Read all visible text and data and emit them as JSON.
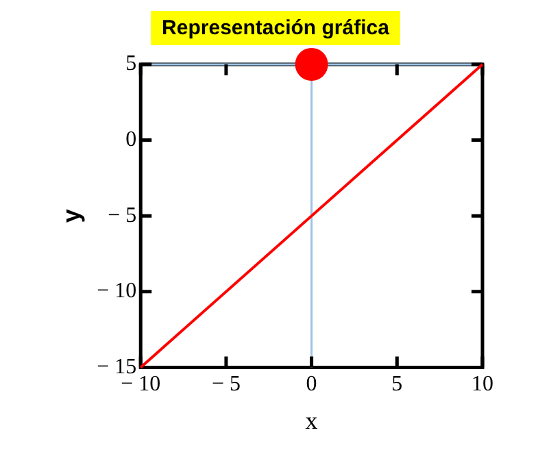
{
  "chart_data": {
    "type": "line",
    "title": "Representación gráfica",
    "xlabel": "x",
    "ylabel": "y",
    "xlim": [
      -10,
      10
    ],
    "ylim": [
      -15,
      5
    ],
    "xticks": [
      {
        "value": -10,
        "label": "− 10"
      },
      {
        "value": -5,
        "label": "− 5"
      },
      0,
      5,
      10
    ],
    "yticks": [
      {
        "value": -15,
        "label": "− 15"
      },
      {
        "value": -10,
        "label": "− 10"
      },
      {
        "value": -5,
        "label": "− 5"
      },
      0,
      5
    ],
    "series": [
      {
        "color": "#ff0000",
        "x": [
          -10,
          10
        ],
        "values": [
          -15,
          5
        ],
        "marker": "none"
      },
      {
        "type": "scatter",
        "color": "#ff0000",
        "x": [
          0
        ],
        "values": [
          5
        ],
        "marker": "circle"
      }
    ],
    "ref_lines": [
      {
        "axis": "x",
        "value": 0,
        "color": "#9cc3e6"
      },
      {
        "axis": "y",
        "value": 5,
        "color": "#9cc3e6"
      }
    ],
    "grid": false,
    "legend": false
  }
}
